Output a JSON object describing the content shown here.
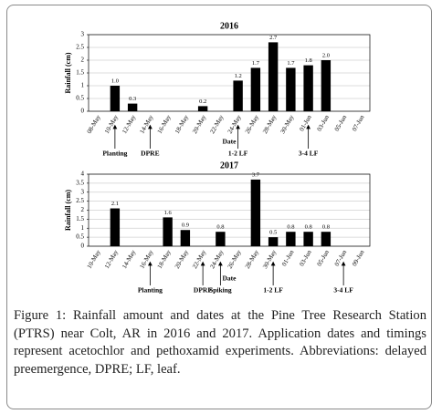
{
  "chart_data": [
    {
      "type": "bar",
      "title": "2016",
      "ylabel": "Rainfall (cm)",
      "xlabel": "Date",
      "color": "#000000",
      "grid": true,
      "categories": [
        "08-May",
        "10-May",
        "12-May",
        "14-May",
        "16-May",
        "18-May",
        "20-May",
        "22-May",
        "24-May",
        "26-May",
        "28-May",
        "30-May",
        "01-Jun",
        "03-Jun",
        "05-Jun",
        "07-Jun"
      ],
      "values": [
        null,
        1.0,
        0.3,
        null,
        null,
        null,
        0.2,
        null,
        1.2,
        1.7,
        2.7,
        1.7,
        1.8,
        2.0,
        null,
        null
      ],
      "value_labels": [
        null,
        "1.0",
        "0.3",
        null,
        null,
        null,
        "0.2",
        null,
        "1.2",
        "1.7",
        "2.7",
        "1.7",
        "1.8",
        "2.0",
        null,
        null
      ],
      "ylim": [
        0,
        3
      ],
      "yticks": [
        0,
        0.5,
        1,
        1.5,
        2,
        2.5,
        3
      ],
      "annotations": [
        {
          "text": "Planting",
          "x": "10-May"
        },
        {
          "text": "DPRE",
          "x": "14-May"
        },
        {
          "text": "1-2 LF",
          "x": "24-May"
        },
        {
          "text": "3-4 LF",
          "x": "01-Jun"
        }
      ]
    },
    {
      "type": "bar",
      "title": "2017",
      "ylabel": "Rainfall (cm)",
      "xlabel": "Date",
      "color": "#000000",
      "grid": true,
      "categories": [
        "10-May",
        "12-May",
        "14-May",
        "16-May",
        "18-May",
        "20-May",
        "22-May",
        "24-May",
        "26-May",
        "28-May",
        "30-May",
        "01-Jun",
        "03-Jun",
        "05-Jun",
        "07-Jun",
        "09-Jun"
      ],
      "values": [
        null,
        2.1,
        null,
        null,
        1.6,
        0.9,
        null,
        0.8,
        null,
        3.7,
        0.5,
        0.8,
        0.8,
        0.8,
        null,
        null
      ],
      "value_labels": [
        null,
        "2.1",
        null,
        null,
        "1.6",
        "0.9",
        null,
        "0.8",
        null,
        "3.7",
        "0.5",
        "0.8",
        "0.8",
        "0.8",
        null,
        null
      ],
      "ylim": [
        0,
        4
      ],
      "yticks": [
        0,
        0.5,
        1,
        1.5,
        2,
        2.5,
        3,
        3.5,
        4
      ],
      "annotations": [
        {
          "text": "Planting",
          "x": "16-May"
        },
        {
          "text": "DPRE",
          "x": "22-May"
        },
        {
          "text": "Spiking",
          "x": "24-May"
        },
        {
          "text": "1-2 LF",
          "x": "30-May"
        },
        {
          "text": "3-4 LF",
          "x": "07-Jun"
        }
      ]
    }
  ],
  "caption": {
    "label": "Figure 1:",
    "text": "Rainfall amount and dates at the Pine Tree Research Station (PTRS) near Colt, AR in 2016 and 2017. Application dates and timings represent acetochlor and pethoxamid experiments. Abbreviations: delayed preemergence, DPRE; LF, leaf."
  }
}
